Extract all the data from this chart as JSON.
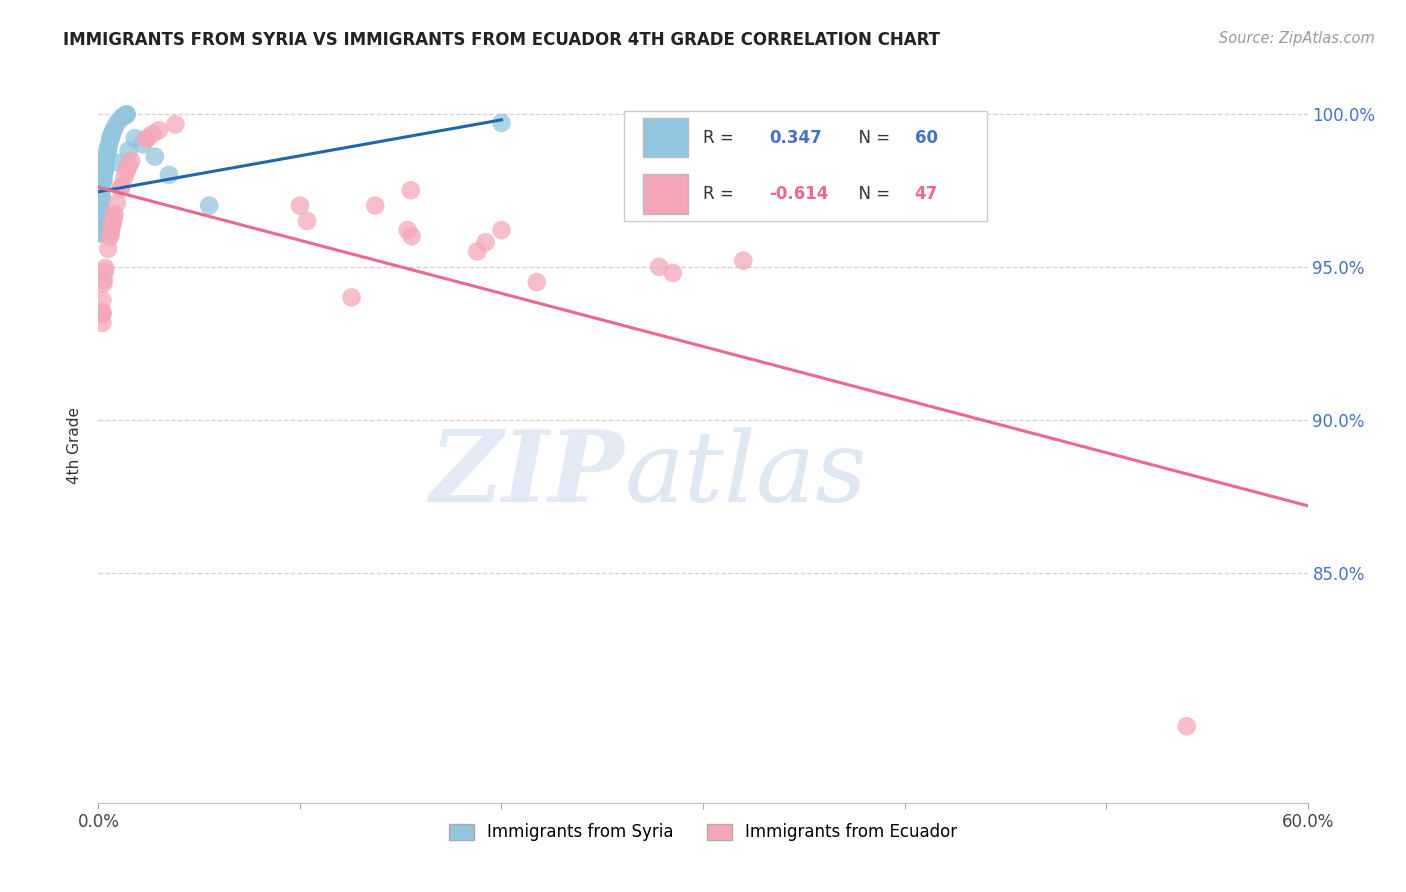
{
  "title": "IMMIGRANTS FROM SYRIA VS IMMIGRANTS FROM ECUADOR 4TH GRADE CORRELATION CHART",
  "source": "Source: ZipAtlas.com",
  "ylabel": "4th Grade",
  "xlim": [
    0.0,
    0.6
  ],
  "ylim": [
    0.775,
    1.008
  ],
  "yticks": [
    1.0,
    0.95,
    0.9,
    0.85
  ],
  "ytick_labels": [
    "100.0%",
    "95.0%",
    "90.0%",
    "85.0%"
  ],
  "legend_syria_r": "0.347",
  "legend_syria_n": "60",
  "legend_ecuador_r": "-0.614",
  "legend_ecuador_n": "47",
  "syria_color": "#92c5de",
  "ecuador_color": "#f4a7b9",
  "syria_line_color": "#2166ac",
  "ecuador_line_color": "#e8698a",
  "background_color": "#ffffff",
  "grid_color": "#d0d0d0",
  "syria_line_x0": 0.0,
  "syria_line_x1": 0.2,
  "syria_line_y0": 0.9745,
  "syria_line_y1": 0.998,
  "ecuador_line_x0": 0.0,
  "ecuador_line_x1": 0.6,
  "ecuador_line_y0": 0.976,
  "ecuador_line_y1": 0.872
}
